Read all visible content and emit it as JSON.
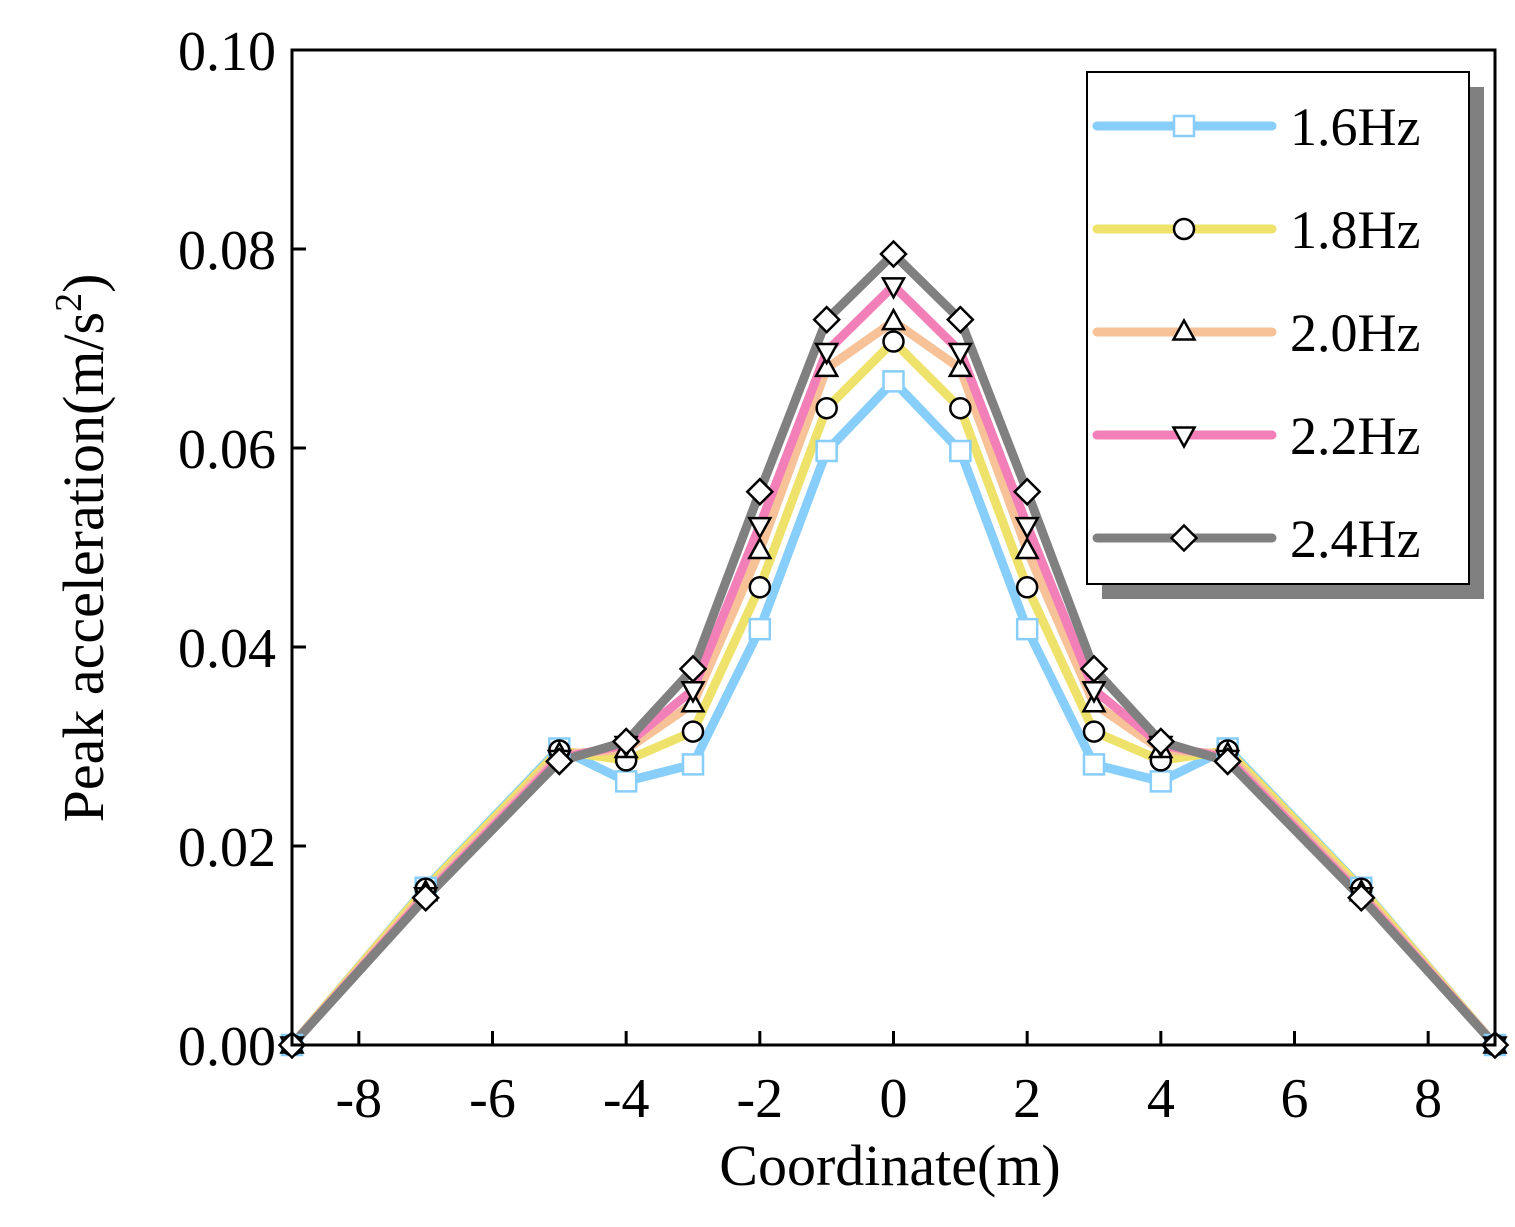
{
  "chart_data": {
    "type": "line",
    "title": "",
    "xlabel": "Coordinate(m)",
    "ylabel_main": "Peak acceleration(m/s",
    "ylabel_sup": "2",
    "ylabel_close": ")",
    "xlim": [
      -9,
      9
    ],
    "ylim": [
      0,
      0.1
    ],
    "xticks": [
      -8,
      -6,
      -4,
      -2,
      0,
      2,
      4,
      6,
      8
    ],
    "xtick_labels": [
      "-8",
      "-6",
      "-4",
      "-2",
      "0",
      "2",
      "4",
      "6",
      "8"
    ],
    "yticks": [
      0,
      0.02,
      0.04,
      0.06,
      0.08,
      0.1
    ],
    "ytick_labels": [
      "0.00",
      "0.02",
      "0.04",
      "0.06",
      "0.08",
      "0.10"
    ],
    "legend_position": "top-right",
    "x": [
      -9,
      -7,
      -5,
      -4,
      -3,
      -2,
      -1,
      0,
      1,
      2,
      3,
      4,
      5,
      7,
      9
    ],
    "series": [
      {
        "name": "1.6Hz",
        "marker": "square",
        "color": "#87CEFA",
        "values": [
          0.0,
          0.0158,
          0.0298,
          0.0265,
          0.0282,
          0.0418,
          0.0597,
          0.0667,
          0.0597,
          0.0418,
          0.0282,
          0.0265,
          0.0298,
          0.0158,
          0.0
        ]
      },
      {
        "name": "1.8Hz",
        "marker": "circle",
        "color": "#EFE26B",
        "values": [
          0.0,
          0.0157,
          0.0296,
          0.0286,
          0.0315,
          0.046,
          0.064,
          0.0707,
          0.064,
          0.046,
          0.0315,
          0.0286,
          0.0296,
          0.0157,
          0.0
        ]
      },
      {
        "name": "2.0Hz",
        "marker": "triangle-up",
        "color": "#F8C298",
        "values": [
          0.0,
          0.0153,
          0.0292,
          0.0297,
          0.0343,
          0.0497,
          0.068,
          0.0727,
          0.068,
          0.0497,
          0.0343,
          0.0297,
          0.0292,
          0.0153,
          0.0
        ]
      },
      {
        "name": "2.2Hz",
        "marker": "triangle-down",
        "color": "#F27FB8",
        "values": [
          0.0,
          0.015,
          0.0288,
          0.0302,
          0.0357,
          0.0522,
          0.0697,
          0.0763,
          0.0697,
          0.0522,
          0.0357,
          0.0302,
          0.0288,
          0.015,
          0.0
        ]
      },
      {
        "name": "2.4Hz",
        "marker": "diamond",
        "color": "#808080",
        "values": [
          0.0,
          0.0148,
          0.0285,
          0.0305,
          0.0378,
          0.0556,
          0.0729,
          0.0795,
          0.0729,
          0.0556,
          0.0378,
          0.0305,
          0.0285,
          0.0148,
          0.0
        ]
      }
    ]
  }
}
